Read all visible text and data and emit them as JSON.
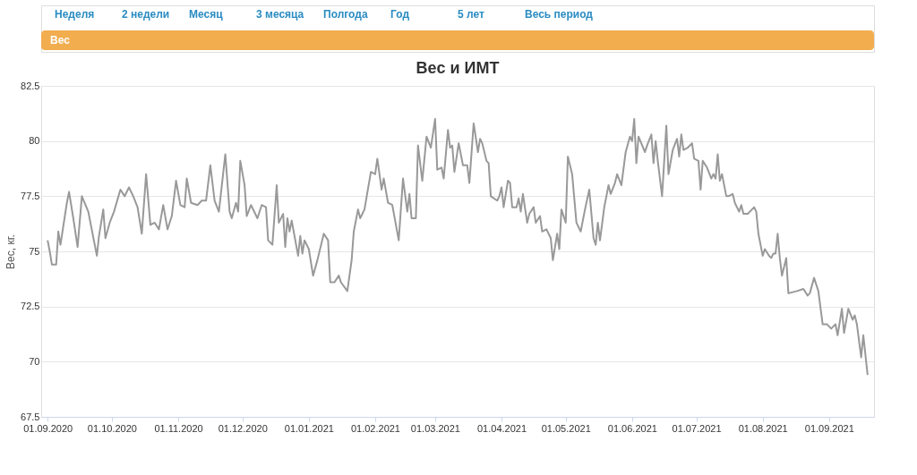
{
  "chart_data": {
    "type": "line",
    "title": "Вес и ИМТ",
    "ylabel": "Вес, кг.",
    "annotations": [
      "Неделя",
      "2 недели",
      "Месяц",
      "3 месяца",
      "Полгода",
      "Год",
      "5 лет",
      "Весь период",
      "Вес"
    ],
    "x": [
      "2020-09-01",
      "2020-09-02",
      "2020-09-03",
      "2020-09-05",
      "2020-09-06",
      "2020-09-07",
      "2020-09-10",
      "2020-09-11",
      "2020-09-13",
      "2020-09-15",
      "2020-09-17",
      "2020-09-20",
      "2020-09-22",
      "2020-09-24",
      "2020-09-25",
      "2020-09-27",
      "2020-09-28",
      "2020-09-30",
      "2020-10-02",
      "2020-10-05",
      "2020-10-07",
      "2020-10-09",
      "2020-10-11",
      "2020-10-13",
      "2020-10-15",
      "2020-10-17",
      "2020-10-19",
      "2020-10-21",
      "2020-10-23",
      "2020-10-25",
      "2020-10-27",
      "2020-10-29",
      "2020-10-31",
      "2020-11-02",
      "2020-11-04",
      "2020-11-05",
      "2020-11-07",
      "2020-11-10",
      "2020-11-12",
      "2020-11-14",
      "2020-11-16",
      "2020-11-18",
      "2020-11-20",
      "2020-11-23",
      "2020-11-25",
      "2020-11-26",
      "2020-11-28",
      "2020-11-29",
      "2020-11-30",
      "2020-12-02",
      "2020-12-03",
      "2020-12-05",
      "2020-12-08",
      "2020-12-10",
      "2020-12-12",
      "2020-12-13",
      "2020-12-15",
      "2020-12-17",
      "2020-12-18",
      "2020-12-20",
      "2020-12-21",
      "2020-12-22",
      "2020-12-23",
      "2020-12-24",
      "2020-12-27",
      "2020-12-28",
      "2020-12-29",
      "2020-12-30",
      "2021-01-01",
      "2021-01-03",
      "2021-01-05",
      "2021-01-08",
      "2021-01-10",
      "2021-01-11",
      "2021-01-13",
      "2021-01-15",
      "2021-01-16",
      "2021-01-19",
      "2021-01-21",
      "2021-01-22",
      "2021-01-24",
      "2021-01-25",
      "2021-01-27",
      "2021-01-30",
      "2021-02-01",
      "2021-02-02",
      "2021-02-04",
      "2021-02-05",
      "2021-02-07",
      "2021-02-09",
      "2021-02-12",
      "2021-02-14",
      "2021-02-16",
      "2021-02-17",
      "2021-02-18",
      "2021-02-20",
      "2021-02-21",
      "2021-02-23",
      "2021-02-25",
      "2021-02-27",
      "2021-03-01",
      "2021-03-02",
      "2021-03-04",
      "2021-03-05",
      "2021-03-07",
      "2021-03-08",
      "2021-03-09",
      "2021-03-10",
      "2021-03-12",
      "2021-03-14",
      "2021-03-16",
      "2021-03-17",
      "2021-03-19",
      "2021-03-21",
      "2021-03-22",
      "2021-03-23",
      "2021-03-25",
      "2021-03-26",
      "2021-03-27",
      "2021-03-30",
      "2021-03-31",
      "2021-04-01",
      "2021-04-02",
      "2021-04-04",
      "2021-04-05",
      "2021-04-06",
      "2021-04-08",
      "2021-04-09",
      "2021-04-10",
      "2021-04-11",
      "2021-04-13",
      "2021-04-14",
      "2021-04-16",
      "2021-04-17",
      "2021-04-19",
      "2021-04-20",
      "2021-04-22",
      "2021-04-24",
      "2021-04-25",
      "2021-04-27",
      "2021-04-28",
      "2021-04-29",
      "2021-05-01",
      "2021-05-02",
      "2021-05-04",
      "2021-05-06",
      "2021-05-08",
      "2021-05-10",
      "2021-05-12",
      "2021-05-14",
      "2021-05-15",
      "2021-05-16",
      "2021-05-17",
      "2021-05-19",
      "2021-05-21",
      "2021-05-22",
      "2021-05-24",
      "2021-05-25",
      "2021-05-27",
      "2021-05-29",
      "2021-05-31",
      "2021-06-01",
      "2021-06-02",
      "2021-06-03",
      "2021-06-04",
      "2021-06-07",
      "2021-06-08",
      "2021-06-10",
      "2021-06-11",
      "2021-06-12",
      "2021-06-13",
      "2021-06-15",
      "2021-06-17",
      "2021-06-18",
      "2021-06-20",
      "2021-06-22",
      "2021-06-23",
      "2021-06-24",
      "2021-06-25",
      "2021-06-27",
      "2021-06-29",
      "2021-06-30",
      "2021-07-02",
      "2021-07-03",
      "2021-07-04",
      "2021-07-06",
      "2021-07-08",
      "2021-07-09",
      "2021-07-10",
      "2021-07-11",
      "2021-07-12",
      "2021-07-13",
      "2021-07-15",
      "2021-07-16",
      "2021-07-18",
      "2021-07-19",
      "2021-07-21",
      "2021-07-22",
      "2021-07-23",
      "2021-07-25",
      "2021-07-26",
      "2021-07-28",
      "2021-07-29",
      "2021-07-30",
      "2021-08-01",
      "2021-08-02",
      "2021-08-04",
      "2021-08-05",
      "2021-08-06",
      "2021-08-07",
      "2021-08-08",
      "2021-08-09",
      "2021-08-10",
      "2021-08-12",
      "2021-08-13",
      "2021-08-17",
      "2021-08-20",
      "2021-08-22",
      "2021-08-23",
      "2021-08-25",
      "2021-08-27",
      "2021-08-29",
      "2021-08-31",
      "2021-09-02",
      "2021-09-04",
      "2021-09-05",
      "2021-09-07",
      "2021-09-08",
      "2021-09-10",
      "2021-09-12",
      "2021-09-13",
      "2021-09-14",
      "2021-09-16",
      "2021-09-17",
      "2021-09-19"
    ],
    "series": [
      {
        "color": "#999999",
        "values": [
          75.5,
          75.0,
          74.4,
          74.4,
          75.9,
          75.3,
          77.2,
          77.7,
          76.5,
          75.2,
          77.5,
          76.8,
          75.8,
          74.8,
          75.7,
          76.9,
          75.6,
          76.3,
          76.8,
          77.8,
          77.5,
          77.9,
          77.5,
          77.0,
          75.8,
          78.5,
          76.2,
          76.3,
          76.0,
          77.1,
          76.0,
          76.6,
          78.2,
          77.1,
          77.0,
          78.3,
          77.2,
          77.1,
          77.3,
          77.3,
          78.9,
          77.3,
          76.8,
          79.4,
          76.8,
          76.5,
          77.2,
          76.8,
          79.1,
          78.0,
          76.6,
          77.1,
          76.5,
          77.1,
          77.0,
          75.5,
          75.3,
          78.0,
          76.3,
          76.7,
          75.2,
          76.5,
          75.9,
          76.4,
          74.8,
          75.7,
          74.9,
          75.5,
          75.1,
          73.9,
          74.6,
          75.8,
          75.5,
          73.6,
          73.6,
          73.9,
          73.6,
          73.2,
          74.6,
          75.9,
          76.9,
          76.5,
          76.9,
          78.6,
          78.5,
          79.2,
          77.8,
          78.3,
          77.2,
          77.1,
          75.5,
          78.3,
          76.8,
          77.6,
          76.5,
          76.5,
          79.8,
          78.2,
          80.2,
          79.7,
          81.0,
          78.7,
          78.8,
          78.3,
          80.5,
          79.7,
          79.8,
          78.6,
          79.9,
          78.9,
          78.9,
          78.1,
          80.8,
          79.5,
          80.1,
          79.9,
          79.1,
          79.0,
          77.5,
          77.3,
          77.5,
          77.9,
          77.0,
          78.2,
          78.1,
          77.0,
          77.0,
          77.4,
          76.8,
          77.6,
          76.3,
          76.7,
          77.0,
          76.3,
          76.6,
          75.9,
          76.0,
          75.6,
          74.6,
          75.8,
          75.1,
          76.9,
          76.3,
          79.3,
          78.5,
          76.3,
          75.9,
          76.9,
          77.8,
          75.6,
          75.3,
          76.3,
          75.5,
          77.0,
          78.0,
          77.6,
          78.1,
          78.5,
          78.0,
          79.5,
          80.2,
          80.0,
          81.0,
          79.0,
          80.2,
          79.5,
          79.8,
          80.3,
          79.0,
          80.0,
          79.1,
          77.5,
          80.7,
          78.5,
          79.6,
          80.1,
          79.3,
          80.3,
          79.6,
          79.7,
          79.9,
          79.2,
          79.1,
          77.8,
          79.1,
          78.8,
          78.3,
          78.5,
          78.3,
          79.4,
          78.2,
          78.5,
          77.5,
          77.5,
          77.6,
          77.2,
          76.8,
          77.1,
          76.7,
          76.7,
          76.8,
          77.0,
          76.8,
          75.8,
          74.8,
          75.1,
          74.8,
          74.7,
          74.9,
          74.9,
          75.8,
          74.7,
          73.9,
          74.7,
          73.1,
          73.2,
          73.3,
          73.0,
          73.1,
          73.8,
          73.2,
          71.7,
          71.7,
          71.5,
          71.7,
          71.2,
          72.4,
          71.3,
          72.4,
          71.9,
          72.1,
          71.7,
          70.2,
          71.2,
          69.4
        ]
      }
    ],
    "xlim": [
      "2020-08-29",
      "2021-09-22"
    ],
    "xticks": [
      {
        "value": "2020-09-01",
        "label": "01.09.2020"
      },
      {
        "value": "2020-10-01",
        "label": "01.10.2020"
      },
      {
        "value": "2020-11-01",
        "label": "01.11.2020"
      },
      {
        "value": "2020-12-01",
        "label": "01.12.2020"
      },
      {
        "value": "2021-01-01",
        "label": "01.01.2021"
      },
      {
        "value": "2021-02-01",
        "label": "01.02.2021"
      },
      {
        "value": "2021-03-01",
        "label": "01.03.2021"
      },
      {
        "value": "2021-04-01",
        "label": "01.04.2021"
      },
      {
        "value": "2021-05-01",
        "label": "01.05.2021"
      },
      {
        "value": "2021-06-01",
        "label": "01.06.2021"
      },
      {
        "value": "2021-07-01",
        "label": "01.07.2021"
      },
      {
        "value": "2021-08-01",
        "label": "01.08.2021"
      },
      {
        "value": "2021-09-01",
        "label": "01.09.2021"
      }
    ],
    "ylim": [
      67.5,
      82.5
    ],
    "yticks": [
      67.5,
      70,
      72.5,
      75,
      77.5,
      80,
      82.5
    ],
    "grid": "y",
    "marker": "none",
    "line_style": "solid",
    "legend": false
  }
}
